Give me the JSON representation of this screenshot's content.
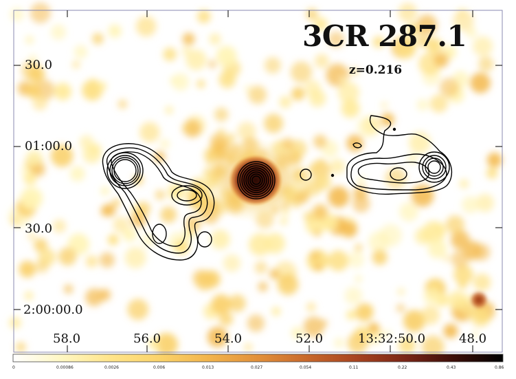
{
  "object_name": "3CR 287.1",
  "redshift": "z=0.216",
  "dec_labels": [
    "30.0",
    "01:00.0",
    "30.0",
    "2:00:00.0"
  ],
  "ra_labels": [
    "58.0",
    "56.0",
    "54.0",
    "52.0",
    "13:32:50.0",
    "48.0"
  ],
  "colorbar_ticks": [
    "0",
    "0.00086",
    "0.0026",
    "0.006",
    "0.013",
    "0.027",
    "0.054",
    "0.11",
    "0.22",
    "0.43",
    "0.86"
  ],
  "colormap": [
    "#ffffff",
    "#fff7c2",
    "#ffe48a",
    "#fbd36a",
    "#f2b44c",
    "#e2903a",
    "#c8682c",
    "#a8441f",
    "#7a2516",
    "#3c0e08",
    "#000000"
  ],
  "contour_color": "#000000"
}
